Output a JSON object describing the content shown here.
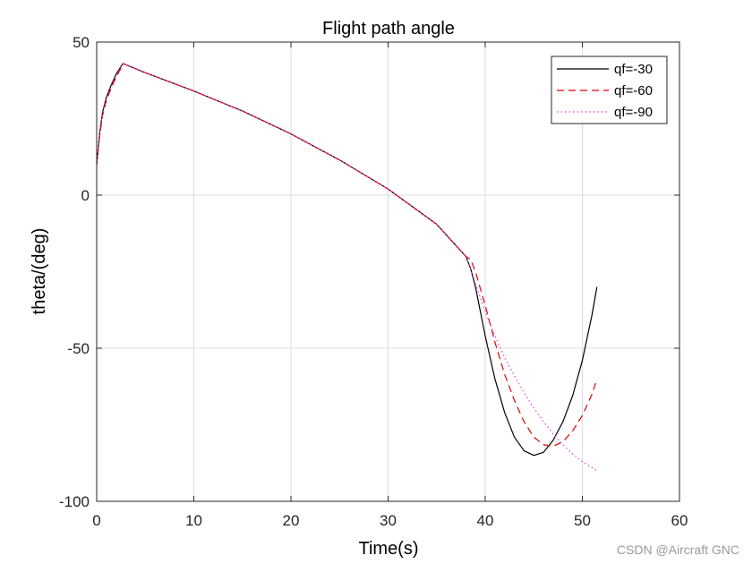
{
  "chart_data": {
    "type": "line",
    "title": "Flight path angle",
    "xlabel": "Time(s)",
    "ylabel": "theta/(deg)",
    "xlim": [
      0,
      60
    ],
    "ylim": [
      -100,
      50
    ],
    "xticks": [
      0,
      10,
      20,
      30,
      40,
      50,
      60
    ],
    "yticks": [
      -100,
      -50,
      0,
      50
    ],
    "grid": true,
    "legend_position": "top-right",
    "series": [
      {
        "name": "qf=-30",
        "color": "#000000",
        "style": "solid",
        "x": [
          0,
          0.3,
          0.6,
          1.0,
          1.5,
          2.0,
          2.5,
          2.7,
          5,
          10,
          15,
          20,
          25,
          30,
          35,
          38,
          38.5,
          39,
          40,
          41,
          42,
          43,
          44,
          45,
          46,
          47,
          48,
          49,
          50,
          51,
          51.5
        ],
        "y": [
          10,
          20,
          27,
          32,
          36,
          39.5,
          42,
          43,
          40,
          34,
          27.5,
          20,
          11.5,
          2,
          -9.5,
          -20,
          -24,
          -30,
          -46,
          -60,
          -71,
          -79,
          -83.5,
          -85,
          -84,
          -80,
          -74,
          -65.5,
          -54,
          -39,
          -30
        ]
      },
      {
        "name": "qf=-60",
        "color": "#e00000",
        "style": "dashed",
        "x": [
          0,
          0.3,
          0.6,
          1.0,
          1.5,
          2.0,
          2.5,
          2.7,
          5,
          10,
          15,
          20,
          25,
          30,
          35,
          38,
          38.5,
          39,
          40,
          41,
          42,
          43,
          44,
          45,
          46,
          47,
          48,
          49,
          50,
          51,
          51.5
        ],
        "y": [
          10,
          19,
          26,
          31,
          35,
          38.5,
          41.5,
          43,
          40,
          34,
          27.5,
          20,
          11.5,
          2,
          -9.5,
          -20,
          -21,
          -25,
          -36,
          -48,
          -58.5,
          -67,
          -74,
          -79,
          -81.5,
          -82,
          -80.5,
          -77,
          -72,
          -65,
          -60
        ]
      },
      {
        "name": "qf=-90",
        "color": "#e040e0",
        "style": "dotted",
        "x": [
          0,
          0.3,
          0.6,
          1.0,
          1.5,
          2.0,
          2.5,
          2.7,
          5,
          10,
          15,
          20,
          25,
          30,
          35,
          38,
          38.5,
          39,
          40,
          41,
          42,
          43,
          44,
          45,
          46,
          47,
          48,
          49,
          50,
          51,
          51.5
        ],
        "y": [
          10,
          20,
          26.5,
          31.5,
          35.5,
          39,
          41.8,
          43,
          40,
          34,
          27.5,
          20,
          11.5,
          2,
          -9.5,
          -20,
          -24,
          -29,
          -38,
          -46,
          -53,
          -59,
          -64.5,
          -69.5,
          -74,
          -78,
          -81.5,
          -84.5,
          -87,
          -89,
          -90
        ]
      }
    ]
  },
  "watermark": "CSDN @Aircraft GNC"
}
